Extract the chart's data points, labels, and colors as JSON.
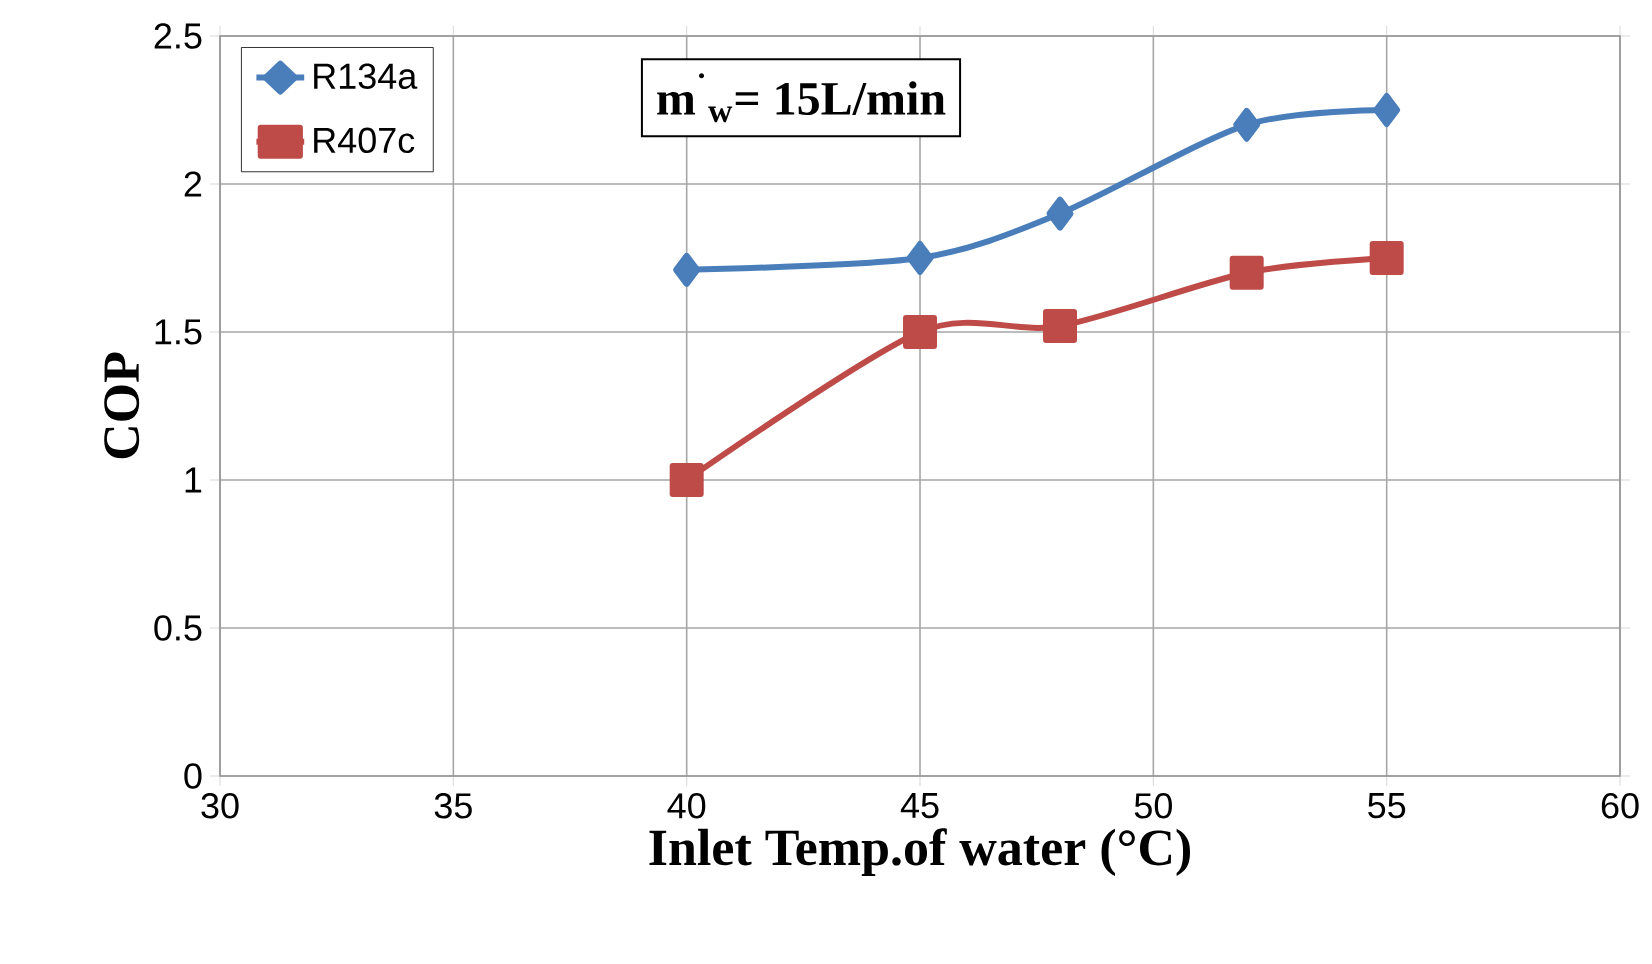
{
  "chart_data": {
    "type": "line",
    "xlabel": "Inlet Temp.of water (°C)",
    "ylabel": "COP",
    "annotations": [
      "m$^{˙}$$_{w}$= 15L/min"
    ],
    "x": [
      40,
      45,
      48,
      52,
      55
    ],
    "series": [
      {
        "name": "R134a",
        "color": "#4a7ebb",
        "marker": "diamond",
        "values": [
          1.71,
          1.75,
          1.9,
          2.2,
          2.25
        ]
      },
      {
        "name": "R407c",
        "color": "#be4b48",
        "marker": "square",
        "values": [
          1.0,
          1.5,
          1.52,
          1.7,
          1.75
        ]
      }
    ],
    "xlim": [
      30,
      60
    ],
    "xticks": [
      30,
      35,
      40,
      45,
      50,
      55,
      60
    ],
    "ylim": [
      0,
      2.5
    ],
    "yticks": [
      0,
      0.5,
      1,
      1.5,
      2,
      2.5
    ],
    "grid": true,
    "legend": "top left",
    "line_style": "solid"
  }
}
